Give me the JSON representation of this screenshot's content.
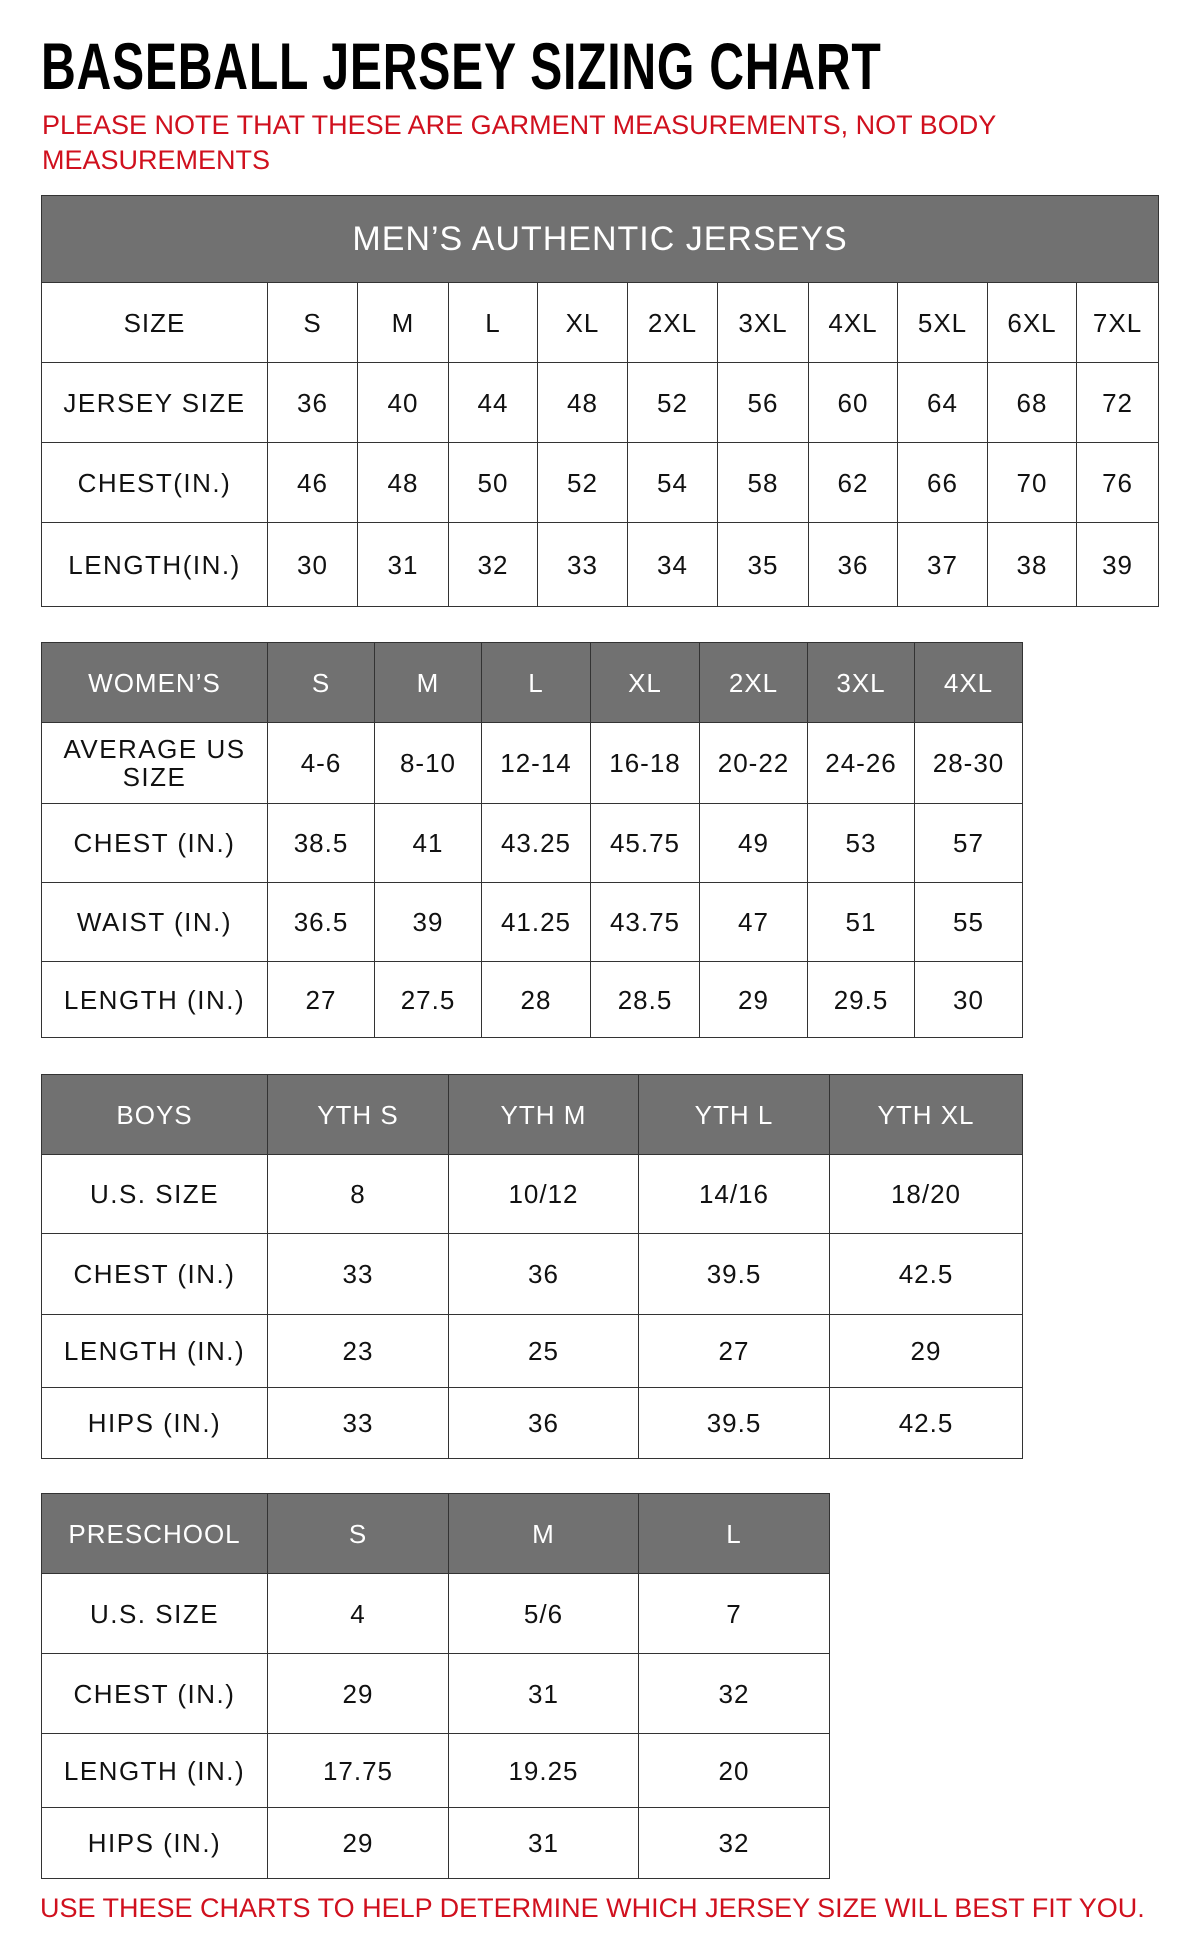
{
  "title": "BASEBALL JERSEY SIZING CHART",
  "note": "PLEASE NOTE THAT THESE ARE GARMENT MEASUREMENTS, NOT BODY MEASUREMENTS",
  "footer": "USE THESE CHARTS TO HELP DETERMINE WHICH JERSEY SIZE WILL BEST FIT YOU.",
  "colors": {
    "header_bg": "#717171",
    "note_red": "#d0101e"
  },
  "tables": [
    {
      "id": "mens",
      "caption": "MEN’S AUTHENTIC JERSEYS",
      "header": [
        "SIZE",
        "S",
        "M",
        "L",
        "XL",
        "2XL",
        "3XL",
        "4XL",
        "5XL",
        "6XL",
        "7XL"
      ],
      "header_shaded": false,
      "rows": [
        [
          "JERSEY SIZE",
          "36",
          "40",
          "44",
          "48",
          "52",
          "56",
          "60",
          "64",
          "68",
          "72"
        ],
        [
          "CHEST(IN.)",
          "46",
          "48",
          "50",
          "52",
          "54",
          "58",
          "62",
          "66",
          "70",
          "76"
        ],
        [
          "LENGTH(IN.)",
          "30",
          "31",
          "32",
          "33",
          "34",
          "35",
          "36",
          "37",
          "38",
          "39"
        ]
      ]
    },
    {
      "id": "womens",
      "header": [
        "WOMEN’S",
        "S",
        "M",
        "L",
        "XL",
        "2XL",
        "3XL",
        "4XL"
      ],
      "header_shaded": true,
      "rows": [
        [
          "AVERAGE US SIZE",
          "4-6",
          "8-10",
          "12-14",
          "16-18",
          "20-22",
          "24-26",
          "28-30"
        ],
        [
          "CHEST (IN.)",
          "38.5",
          "41",
          "43.25",
          "45.75",
          "49",
          "53",
          "57"
        ],
        [
          "WAIST (IN.)",
          "36.5",
          "39",
          "41.25",
          "43.75",
          "47",
          "51",
          "55"
        ],
        [
          "LENGTH (IN.)",
          "27",
          "27.5",
          "28",
          "28.5",
          "29",
          "29.5",
          "30"
        ]
      ]
    },
    {
      "id": "boys",
      "header": [
        "BOYS",
        "YTH S",
        "YTH M",
        "YTH L",
        "YTH XL"
      ],
      "header_shaded": true,
      "rows": [
        [
          "U.S. SIZE",
          "8",
          "10/12",
          "14/16",
          "18/20"
        ],
        [
          "CHEST (IN.)",
          "33",
          "36",
          "39.5",
          "42.5"
        ],
        [
          "LENGTH (IN.)",
          "23",
          "25",
          "27",
          "29"
        ],
        [
          "HIPS (IN.)",
          "33",
          "36",
          "39.5",
          "42.5"
        ]
      ]
    },
    {
      "id": "preschool",
      "header": [
        "PRESCHOOL",
        "S",
        "M",
        "L"
      ],
      "header_shaded": true,
      "rows": [
        [
          "U.S. SIZE",
          "4",
          "5/6",
          "7"
        ],
        [
          "CHEST (IN.)",
          "29",
          "31",
          "32"
        ],
        [
          "LENGTH (IN.)",
          "17.75",
          "19.25",
          "20"
        ],
        [
          "HIPS (IN.)",
          "29",
          "31",
          "32"
        ]
      ]
    }
  ]
}
